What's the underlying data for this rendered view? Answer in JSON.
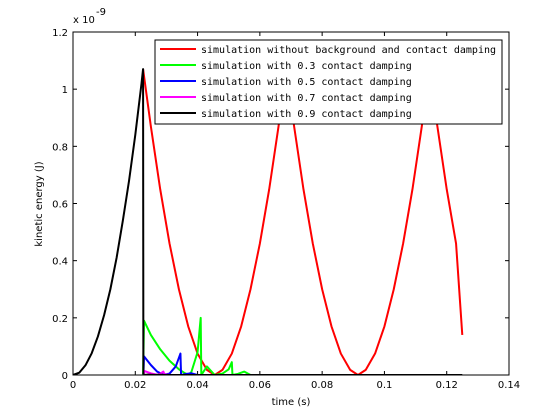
{
  "chart_data": {
    "type": "line",
    "xlabel": "time (s)",
    "ylabel": "kinetic energy (J)",
    "y_multiplier_label": "x 10",
    "y_multiplier_exponent": "-9",
    "xlim": [
      0,
      0.14
    ],
    "ylim": [
      0,
      1.2
    ],
    "xticks": [
      0,
      0.02,
      0.04,
      0.06,
      0.08,
      0.1,
      0.12,
      0.14
    ],
    "xtick_labels": [
      "0",
      "0.02",
      "0.04",
      "0.06",
      "0.08",
      "0.1",
      "0.12",
      "0.14"
    ],
    "yticks": [
      0,
      0.2,
      0.4,
      0.6,
      0.8,
      1,
      1.2
    ],
    "ytick_labels": [
      "0",
      "0.2",
      "0.4",
      "0.6",
      "0.8",
      "1",
      "1.2"
    ],
    "grid": false,
    "legend_position": "top-right",
    "series": [
      {
        "name": "simulation without background and contact damping",
        "color": "#ff0000",
        "x": [
          0.0225,
          0.025,
          0.028,
          0.031,
          0.034,
          0.037,
          0.04,
          0.043,
          0.0455,
          0.048,
          0.051,
          0.054,
          0.057,
          0.06,
          0.063,
          0.066,
          0.0685,
          0.071,
          0.074,
          0.077,
          0.08,
          0.083,
          0.086,
          0.089,
          0.0915,
          0.094,
          0.097,
          0.1,
          0.103,
          0.106,
          0.109,
          0.112,
          0.1145,
          0.117,
          0.12,
          0.123,
          0.125
        ],
        "y": [
          1.07,
          0.87,
          0.65,
          0.46,
          0.3,
          0.17,
          0.075,
          0.018,
          0,
          0.018,
          0.075,
          0.17,
          0.3,
          0.46,
          0.65,
          0.87,
          1.07,
          0.87,
          0.65,
          0.46,
          0.3,
          0.17,
          0.075,
          0.018,
          0,
          0.018,
          0.075,
          0.17,
          0.3,
          0.46,
          0.65,
          0.87,
          1.07,
          0.87,
          0.65,
          0.46,
          0.14
        ]
      },
      {
        "name": "simulation with 0.3 contact damping",
        "color": "#00ff00",
        "x": [
          0.0225,
          0.0228,
          0.025,
          0.028,
          0.031,
          0.034,
          0.036,
          0.037,
          0.038,
          0.04,
          0.041,
          0.0412,
          0.043,
          0.0455,
          0.048,
          0.05,
          0.051,
          0.0512,
          0.053,
          0.055,
          0.057
        ],
        "y": [
          0,
          0.19,
          0.14,
          0.09,
          0.05,
          0.02,
          0.006,
          0.001,
          0.01,
          0.08,
          0.2,
          0,
          0.03,
          0,
          0.005,
          0.02,
          0.045,
          0,
          0.004,
          0.012,
          0
        ]
      },
      {
        "name": "simulation with 0.5 contact damping",
        "color": "#0000ff",
        "x": [
          0.0226,
          0.0228,
          0.025,
          0.027,
          0.029,
          0.031,
          0.033,
          0.0345,
          0.0347,
          0.036,
          0.038,
          0.04
        ],
        "y": [
          0,
          0.065,
          0.035,
          0.012,
          0.001,
          0.005,
          0.03,
          0.075,
          0,
          0.003,
          0.006,
          0
        ]
      },
      {
        "name": "simulation with 0.7 contact damping",
        "color": "#ff00ff",
        "x": [
          0.0227,
          0.0229,
          0.025,
          0.027,
          0.028,
          0.029,
          0.0295,
          0.03,
          0.031
        ],
        "y": [
          0,
          0.014,
          0.006,
          0.001,
          0.004,
          0.012,
          0,
          0.002,
          0
        ]
      },
      {
        "name": "simulation with 0.9 contact damping",
        "color": "#000000",
        "x": [
          0,
          0.002,
          0.004,
          0.006,
          0.008,
          0.01,
          0.012,
          0.014,
          0.016,
          0.018,
          0.02,
          0.022,
          0.0225,
          0.0226,
          0.024,
          0.026,
          0.028,
          0.03,
          0.04,
          0.05,
          0.06,
          0.07,
          0.08,
          0.09,
          0.1,
          0.11,
          0.12,
          0.125
        ],
        "y": [
          0,
          0.008,
          0.034,
          0.076,
          0.135,
          0.21,
          0.3,
          0.41,
          0.54,
          0.68,
          0.84,
          1.02,
          1.07,
          0,
          0.0015,
          0.0005,
          0.001,
          0,
          0,
          0,
          0,
          0,
          0,
          0,
          0,
          0,
          0,
          0
        ]
      }
    ]
  }
}
